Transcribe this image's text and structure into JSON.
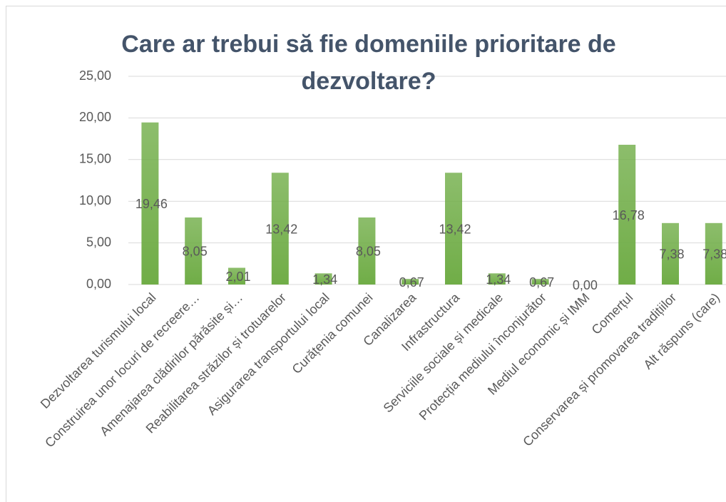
{
  "chart_data": {
    "type": "bar",
    "title": "Care ar trebui să fie domeniile prioritare de dezvoltare?",
    "categories": [
      "Dezvoltarea turismului local",
      "Construirea unor locuri de recreere…",
      "Amenajarea clădirilor părăsite și…",
      "Reabilitarea străzilor și trotuarelor",
      "Asigurarea transportului local",
      "Curățenia comunei",
      "Canalizarea",
      "Infrastructura",
      "Serviciile sociale și medicale",
      "Protecția mediului înconjurător",
      "Mediul economic și IMM",
      "Comerțul",
      "Conservarea și promovarea tradițiilor",
      "Alt răspuns (care)"
    ],
    "values": [
      19.46,
      8.05,
      2.01,
      13.42,
      1.34,
      8.05,
      0.67,
      13.42,
      1.34,
      0.67,
      0.0,
      16.78,
      7.38,
      7.38
    ],
    "value_labels": [
      "19,46",
      "8,05",
      "2,01",
      "13,42",
      "1,34",
      "8,05",
      "0,67",
      "13,42",
      "1,34",
      "0,67",
      "0,00",
      "16,78",
      "7,38",
      "7,38"
    ],
    "color": "#70ad47",
    "ylim": [
      0,
      25
    ],
    "yticks": [
      {
        "value": 0,
        "label": "0,00"
      },
      {
        "value": 5,
        "label": "5,00"
      },
      {
        "value": 10,
        "label": "10,00"
      },
      {
        "value": 15,
        "label": "15,00"
      },
      {
        "value": 20,
        "label": "20,00"
      },
      {
        "value": 25,
        "label": "25,00"
      }
    ],
    "grid": true
  }
}
